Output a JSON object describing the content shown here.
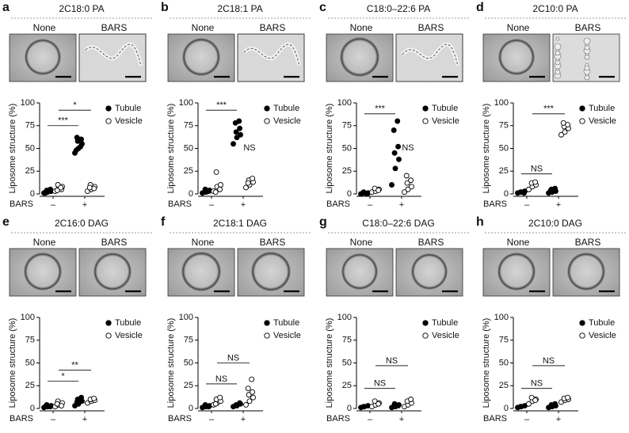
{
  "chart_data": [
    {
      "type": "dot",
      "panel_label": "a",
      "title": "2C18:0 PA",
      "image_labels": [
        "None",
        "BARS"
      ],
      "ylabel": "Liposome structure (%)",
      "xlabel": "BARS",
      "categories": [
        "–",
        "+"
      ],
      "ylim": [
        0,
        100
      ],
      "yticks": [
        0,
        25,
        50,
        75,
        100
      ],
      "series": [
        {
          "name": "Tubule",
          "color": "#000000",
          "values": [
            [
              1,
              2,
              3,
              4,
              5,
              2,
              3,
              1
            ],
            [
              45,
              50,
              55,
              58,
              60,
              62,
              52,
              48
            ]
          ]
        },
        {
          "name": "Vesicle",
          "color": "#ffffff",
          "values": [
            [
              3,
              6,
              8,
              10,
              5,
              4,
              7
            ],
            [
              3,
              5,
              8,
              10,
              6,
              7
            ]
          ]
        }
      ],
      "annotations": [
        "***",
        "*"
      ]
    },
    {
      "type": "dot",
      "panel_label": "b",
      "title": "2C18:1 PA",
      "image_labels": [
        "None",
        "BARS"
      ],
      "ylabel": "Liposome structure (%)",
      "xlabel": "BARS",
      "categories": [
        "–",
        "+"
      ],
      "ylim": [
        0,
        100
      ],
      "yticks": [
        0,
        25,
        50,
        75,
        100
      ],
      "series": [
        {
          "name": "Tubule",
          "color": "#000000",
          "values": [
            [
              1,
              2,
              4,
              5,
              3
            ],
            [
              55,
              62,
              65,
              68,
              72,
              78,
              80
            ]
          ]
        },
        {
          "name": "Vesicle",
          "color": "#ffffff",
          "values": [
            [
              3,
              8,
              10,
              24,
              5,
              2
            ],
            [
              7,
              10,
              13,
              15,
              17,
              12
            ]
          ]
        }
      ],
      "annotations": [
        "***",
        "NS"
      ]
    },
    {
      "type": "dot",
      "panel_label": "c",
      "title": "C18:0–22:6 PA",
      "image_labels": [
        "None",
        "BARS"
      ],
      "ylabel": "Liposome structure (%)",
      "xlabel": "BARS",
      "categories": [
        "–",
        "+"
      ],
      "ylim": [
        0,
        100
      ],
      "yticks": [
        0,
        25,
        50,
        75,
        100
      ],
      "series": [
        {
          "name": "Tubule",
          "color": "#000000",
          "values": [
            [
              0,
              1,
              1,
              2,
              0,
              1
            ],
            [
              10,
              28,
              38,
              45,
              52,
              70,
              80
            ]
          ]
        },
        {
          "name": "Vesicle",
          "color": "#ffffff",
          "values": [
            [
              2,
              3,
              5,
              6,
              4
            ],
            [
              2,
              5,
              8,
              12,
              15,
              20
            ]
          ]
        }
      ],
      "annotations": [
        "***",
        "NS"
      ]
    },
    {
      "type": "dot",
      "panel_label": "d",
      "title": "2C10:0 PA",
      "image_labels": [
        "None",
        "BARS"
      ],
      "ylabel": "Liposome structure (%)",
      "xlabel": "BARS",
      "categories": [
        "–",
        "+"
      ],
      "ylim": [
        0,
        100
      ],
      "yticks": [
        0,
        25,
        50,
        75,
        100
      ],
      "series": [
        {
          "name": "Tubule",
          "color": "#000000",
          "values": [
            [
              1,
              2,
              3,
              2,
              1
            ],
            [
              1,
              2,
              3,
              5,
              6,
              4
            ]
          ]
        },
        {
          "name": "Vesicle",
          "color": "#ffffff",
          "values": [
            [
              5,
              8,
              10,
              12,
              13
            ],
            [
              65,
              68,
              72,
              74,
              76,
              78
            ]
          ]
        }
      ],
      "annotations": [
        "NS",
        "***"
      ]
    },
    {
      "type": "dot",
      "panel_label": "e",
      "title": "2C16:0 DAG",
      "image_labels": [
        "None",
        "BARS"
      ],
      "ylabel": "Liposome structure (%)",
      "xlabel": "BARS",
      "categories": [
        "–",
        "+"
      ],
      "ylim": [
        0,
        100
      ],
      "yticks": [
        0,
        25,
        50,
        75,
        100
      ],
      "series": [
        {
          "name": "Tubule",
          "color": "#000000",
          "values": [
            [
              1,
              2,
              3,
              4,
              2,
              3
            ],
            [
              3,
              5,
              8,
              10,
              12,
              7
            ]
          ]
        },
        {
          "name": "Vesicle",
          "color": "#ffffff",
          "values": [
            [
              2,
              4,
              6,
              8,
              3,
              5
            ],
            [
              6,
              8,
              9,
              10,
              11
            ]
          ]
        }
      ],
      "annotations": [
        "*",
        "**"
      ]
    },
    {
      "type": "dot",
      "panel_label": "f",
      "title": "2C18:1 DAG",
      "image_labels": [
        "None",
        "BARS"
      ],
      "ylabel": "Liposome structure (%)",
      "xlabel": "BARS",
      "categories": [
        "–",
        "+"
      ],
      "ylim": [
        0,
        100
      ],
      "yticks": [
        0,
        25,
        50,
        75,
        100
      ],
      "series": [
        {
          "name": "Tubule",
          "color": "#000000",
          "values": [
            [
              1,
              2,
              3,
              4,
              2
            ],
            [
              2,
              3,
              5,
              4,
              6
            ]
          ]
        },
        {
          "name": "Vesicle",
          "color": "#ffffff",
          "values": [
            [
              4,
              6,
              8,
              10,
              12,
              5
            ],
            [
              4,
              8,
              12,
              15,
              18,
              22,
              32
            ]
          ]
        }
      ],
      "annotations": [
        "NS",
        "NS"
      ]
    },
    {
      "type": "dot",
      "panel_label": "g",
      "title": "C18:0–22:6 DAG",
      "image_labels": [
        "None",
        "BARS"
      ],
      "ylabel": "Liposome structure (%)",
      "xlabel": "BARS",
      "categories": [
        "–",
        "+"
      ],
      "ylim": [
        0,
        100
      ],
      "yticks": [
        0,
        25,
        50,
        75,
        100
      ],
      "series": [
        {
          "name": "Tubule",
          "color": "#000000",
          "values": [
            [
              1,
              2,
              3,
              2
            ],
            [
              1,
              2,
              4,
              5,
              3
            ]
          ]
        },
        {
          "name": "Vesicle",
          "color": "#ffffff",
          "values": [
            [
              2,
              4,
              6,
              8,
              5
            ],
            [
              2,
              4,
              6,
              8,
              10
            ]
          ]
        }
      ],
      "annotations": [
        "NS",
        "NS"
      ]
    },
    {
      "type": "dot",
      "panel_label": "h",
      "title": "2C10:0 DAG",
      "image_labels": [
        "None",
        "BARS"
      ],
      "ylabel": "Liposome structure (%)",
      "xlabel": "BARS",
      "categories": [
        "–",
        "+"
      ],
      "ylim": [
        0,
        100
      ],
      "yticks": [
        0,
        25,
        50,
        75,
        100
      ],
      "series": [
        {
          "name": "Tubule",
          "color": "#000000",
          "values": [
            [
              1,
              2,
              3,
              2
            ],
            [
              1,
              2,
              3,
              4,
              5
            ]
          ]
        },
        {
          "name": "Vesicle",
          "color": "#ffffff",
          "values": [
            [
              5,
              8,
              10,
              12,
              9
            ],
            [
              7,
              9,
              10,
              11,
              12
            ]
          ]
        }
      ],
      "annotations": [
        "NS",
        "NS"
      ]
    }
  ]
}
